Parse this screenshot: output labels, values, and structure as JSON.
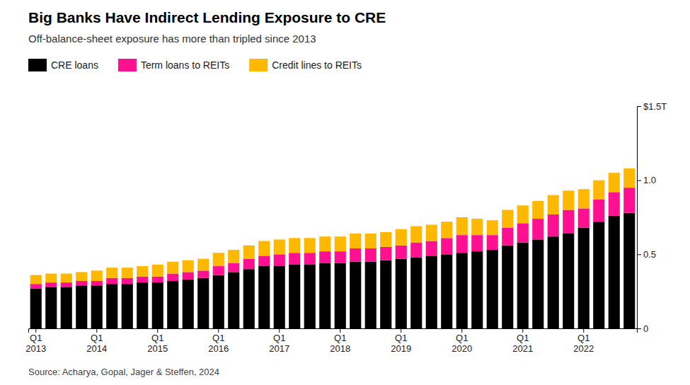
{
  "chart_data": {
    "type": "bar",
    "stacked": true,
    "title": "Big Banks Have Indirect Lending Exposure to CRE",
    "subtitle": "Off-balance-sheet exposure has more than tripled since 2013",
    "source": "Source: Acharya, Gopal, Jager & Steffen, 2024",
    "categories": [
      "Q1\n2013",
      null,
      null,
      null,
      "Q1\n2014",
      null,
      null,
      null,
      "Q1\n2015",
      null,
      null,
      null,
      "Q1\n2016",
      null,
      null,
      null,
      "Q1\n2017",
      null,
      null,
      null,
      "Q1\n2018",
      null,
      null,
      null,
      "Q1\n2019",
      null,
      null,
      null,
      "Q1\n2020",
      null,
      null,
      null,
      "Q1\n2021",
      null,
      null,
      null,
      "Q1\n2022",
      null,
      null,
      null
    ],
    "series": [
      {
        "name": "CRE loans",
        "color": "#000000",
        "values": [
          0.27,
          0.28,
          0.28,
          0.29,
          0.29,
          0.3,
          0.3,
          0.31,
          0.31,
          0.32,
          0.33,
          0.34,
          0.36,
          0.38,
          0.4,
          0.42,
          0.42,
          0.43,
          0.43,
          0.44,
          0.44,
          0.45,
          0.45,
          0.46,
          0.47,
          0.48,
          0.49,
          0.5,
          0.51,
          0.52,
          0.53,
          0.56,
          0.58,
          0.6,
          0.62,
          0.64,
          0.68,
          0.72,
          0.76,
          0.78
        ]
      },
      {
        "name": "Term loans to REITs",
        "color": "#FF1090",
        "values": [
          0.03,
          0.03,
          0.03,
          0.03,
          0.03,
          0.04,
          0.04,
          0.04,
          0.04,
          0.05,
          0.05,
          0.05,
          0.06,
          0.06,
          0.07,
          0.07,
          0.08,
          0.08,
          0.08,
          0.08,
          0.08,
          0.09,
          0.09,
          0.09,
          0.09,
          0.1,
          0.1,
          0.11,
          0.12,
          0.11,
          0.1,
          0.12,
          0.13,
          0.14,
          0.15,
          0.16,
          0.13,
          0.15,
          0.16,
          0.17
        ]
      },
      {
        "name": "Credit lines to REITs",
        "color": "#FFB800",
        "values": [
          0.06,
          0.06,
          0.06,
          0.06,
          0.07,
          0.07,
          0.07,
          0.07,
          0.08,
          0.08,
          0.08,
          0.08,
          0.09,
          0.09,
          0.09,
          0.1,
          0.1,
          0.1,
          0.1,
          0.1,
          0.1,
          0.1,
          0.1,
          0.1,
          0.11,
          0.11,
          0.11,
          0.11,
          0.12,
          0.11,
          0.1,
          0.12,
          0.12,
          0.12,
          0.13,
          0.13,
          0.13,
          0.13,
          0.13,
          0.13
        ]
      }
    ],
    "ylim": [
      0,
      1.5
    ],
    "yticks": [
      0,
      0.5,
      {
        "value": 1.0,
        "label": "1.0"
      },
      {
        "value": 1.5,
        "label": "$1.5T"
      }
    ],
    "grid": false,
    "legend": "top left"
  }
}
